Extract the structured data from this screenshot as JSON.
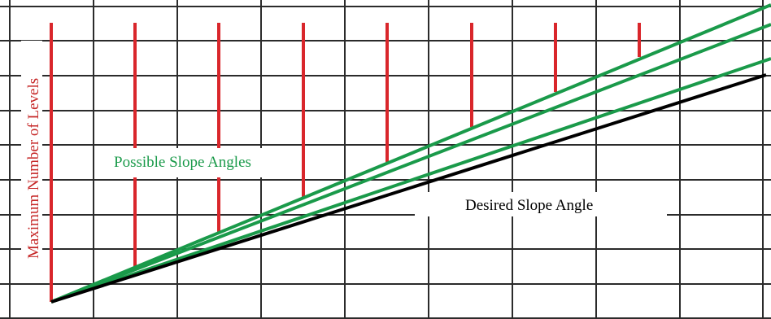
{
  "labels": {
    "y_axis": "Maximum Number of Levels",
    "green_lines": "Possible Slope Angles",
    "black_line": "Desired Slope Angle"
  },
  "colors": {
    "grid": "#2b2b2b",
    "level_bars": "#d9262b",
    "possible_slopes": "#1a9a4a",
    "desired_slope": "#000000",
    "y_label": "#c62828",
    "green_label": "#1a9a4a",
    "black_label": "#000000",
    "background": "#ffffff"
  }
}
